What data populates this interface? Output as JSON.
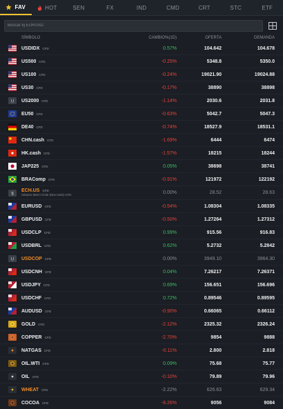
{
  "tabs": [
    {
      "label": "FAV",
      "icon": "star-icon",
      "active": true
    },
    {
      "label": "HOT",
      "icon": "flame-icon",
      "active": false
    },
    {
      "label": "SEN",
      "icon": "",
      "active": false
    },
    {
      "label": "FX",
      "icon": "",
      "active": false
    },
    {
      "label": "IND",
      "icon": "",
      "active": false
    },
    {
      "label": "CMD",
      "icon": "",
      "active": false
    },
    {
      "label": "CRT",
      "icon": "",
      "active": false
    },
    {
      "label": "STC",
      "icon": "",
      "active": false
    },
    {
      "label": "ETF",
      "icon": "",
      "active": false
    }
  ],
  "search": {
    "placeholder": "Buscar ej EURUSD",
    "grid_icon": "grid-icon"
  },
  "header": {
    "symbol": "SÍMBOLO",
    "change": "CAMBIO%(1D)",
    "bid": "OFERTA",
    "ask": "DEMANDA"
  },
  "colors": {
    "accent": "#f2c230",
    "positive": "#3fbf68",
    "negative": "#e8453c",
    "background": "#1b1e24",
    "highlight": "#f08c2a"
  },
  "rows": [
    {
      "symbol": "USDIDX",
      "tag": "CFD",
      "change": "0.57%",
      "bid": "104.642",
      "ask": "104.678",
      "dir": "pos",
      "icon": "us-flag-icon"
    },
    {
      "symbol": "US500",
      "tag": "CFD",
      "change": "-0.25%",
      "bid": "5348.8",
      "ask": "5350.0",
      "dir": "neg",
      "icon": "us-flag-icon"
    },
    {
      "symbol": "US100",
      "tag": "CFD",
      "change": "-0.24%",
      "bid": "19021.90",
      "ask": "19024.88",
      "dir": "neg",
      "icon": "us-flag-icon"
    },
    {
      "symbol": "US30",
      "tag": "CFD",
      "change": "-0.17%",
      "bid": "38890",
      "ask": "38898",
      "dir": "neg",
      "icon": "us-flag-icon"
    },
    {
      "symbol": "US2000",
      "tag": "CFD",
      "change": "-1.14%",
      "bid": "2030.6",
      "ask": "2031.8",
      "dir": "neg",
      "icon": "us2000-icon"
    },
    {
      "symbol": "EU50",
      "tag": "CFD",
      "change": "-0.63%",
      "bid": "5042.7",
      "ask": "5047.3",
      "dir": "neg",
      "icon": "eu-flag-icon"
    },
    {
      "symbol": "DE40",
      "tag": "CFD",
      "change": "-0.74%",
      "bid": "18527.9",
      "ask": "18531.1",
      "dir": "neg",
      "icon": "de-flag-icon"
    },
    {
      "symbol": "CHN.cash",
      "tag": "CFD",
      "change": "-1.69%",
      "bid": "6444",
      "ask": "6474",
      "dir": "neg",
      "icon": "cn-flag-icon"
    },
    {
      "symbol": "HK.cash",
      "tag": "CFD",
      "change": "-1.57%",
      "bid": "18215",
      "ask": "18244",
      "dir": "neg",
      "icon": "hk-flag-icon"
    },
    {
      "symbol": "JAP225",
      "tag": "CFD",
      "change": "0.05%",
      "bid": "38698",
      "ask": "38741",
      "dir": "pos",
      "icon": "jp-flag-icon"
    },
    {
      "symbol": "BRAComp",
      "tag": "CFD",
      "change": "-0.91%",
      "bid": "121972",
      "ask": "122192",
      "dir": "neg",
      "icon": "br-flag-icon"
    },
    {
      "symbol": "ECH.US",
      "tag": "CFD",
      "sub": "iShares MSCI Chile (Dist USD) CFD",
      "change": "0.00%",
      "bid": "28.52",
      "ask": "28.63",
      "dir": "flat",
      "icon": "etf-icon",
      "dim": true,
      "orange": true
    },
    {
      "symbol": "EURUSD",
      "tag": "CFD",
      "change": "-0.54%",
      "bid": "1.08304",
      "ask": "1.08335",
      "dir": "neg",
      "icon": "eu-us-flag-icon"
    },
    {
      "symbol": "GBPUSD",
      "tag": "CFD",
      "change": "-0.50%",
      "bid": "1.27264",
      "ask": "1.27312",
      "dir": "neg",
      "icon": "gb-us-flag-icon"
    },
    {
      "symbol": "USDCLP",
      "tag": "CFD",
      "change": "0.99%",
      "bid": "915.56",
      "ask": "916.83",
      "dir": "pos",
      "icon": "us-cl-flag-icon"
    },
    {
      "symbol": "USDBRL",
      "tag": "CFD",
      "change": "0.62%",
      "bid": "5.2732",
      "ask": "5.2842",
      "dir": "pos",
      "icon": "us-br-flag-icon"
    },
    {
      "symbol": "USDCOP",
      "tag": "CFD",
      "change": "0.00%",
      "bid": "3949.10",
      "ask": "3964.30",
      "dir": "flat",
      "icon": "us-co-icon",
      "dim": true,
      "orange": true
    },
    {
      "symbol": "USDCNH",
      "tag": "CFD",
      "change": "0.04%",
      "bid": "7.26217",
      "ask": "7.26371",
      "dir": "pos",
      "icon": "us-cn-flag-icon"
    },
    {
      "symbol": "USDJPY",
      "tag": "CFD",
      "change": "0.69%",
      "bid": "156.651",
      "ask": "156.696",
      "dir": "pos",
      "icon": "us-jp-flag-icon"
    },
    {
      "symbol": "USDCHF",
      "tag": "CFD",
      "change": "0.72%",
      "bid": "0.89546",
      "ask": "0.89595",
      "dir": "pos",
      "icon": "us-ch-flag-icon"
    },
    {
      "symbol": "AUDUSD",
      "tag": "CFD",
      "change": "-0.90%",
      "bid": "0.66065",
      "ask": "0.66112",
      "dir": "neg",
      "icon": "au-us-flag-icon"
    },
    {
      "symbol": "GOLD",
      "tag": "CFD",
      "change": "-2.12%",
      "bid": "2325.32",
      "ask": "2326.24",
      "dir": "neg",
      "icon": "gold-icon"
    },
    {
      "symbol": "COPPER",
      "tag": "CFD",
      "change": "-2.70%",
      "bid": "9854",
      "ask": "9888",
      "dir": "neg",
      "icon": "copper-icon"
    },
    {
      "symbol": "NATGAS",
      "tag": "CFD",
      "change": "-0.11%",
      "bid": "2.800",
      "ask": "2.818",
      "dir": "neg",
      "icon": "flame-gas-icon"
    },
    {
      "symbol": "OIL.WTI",
      "tag": "CFD",
      "change": "0.09%",
      "bid": "75.68",
      "ask": "75.77",
      "dir": "pos",
      "icon": "oil-barrel-icon"
    },
    {
      "symbol": "OIL",
      "tag": "CFD",
      "change": "-0.10%",
      "bid": "79.89",
      "ask": "79.96",
      "dir": "neg",
      "icon": "oil-icon"
    },
    {
      "symbol": "WHEAT",
      "tag": "CFD",
      "change": "-2.22%",
      "bid": "626.63",
      "ask": "629.34",
      "dir": "neg",
      "icon": "wheat-icon",
      "dim": true,
      "orange": true
    },
    {
      "symbol": "COCOA",
      "tag": "CFD",
      "change": "-8.26%",
      "bid": "9056",
      "ask": "9084",
      "dir": "neg",
      "icon": "cocoa-icon"
    }
  ]
}
